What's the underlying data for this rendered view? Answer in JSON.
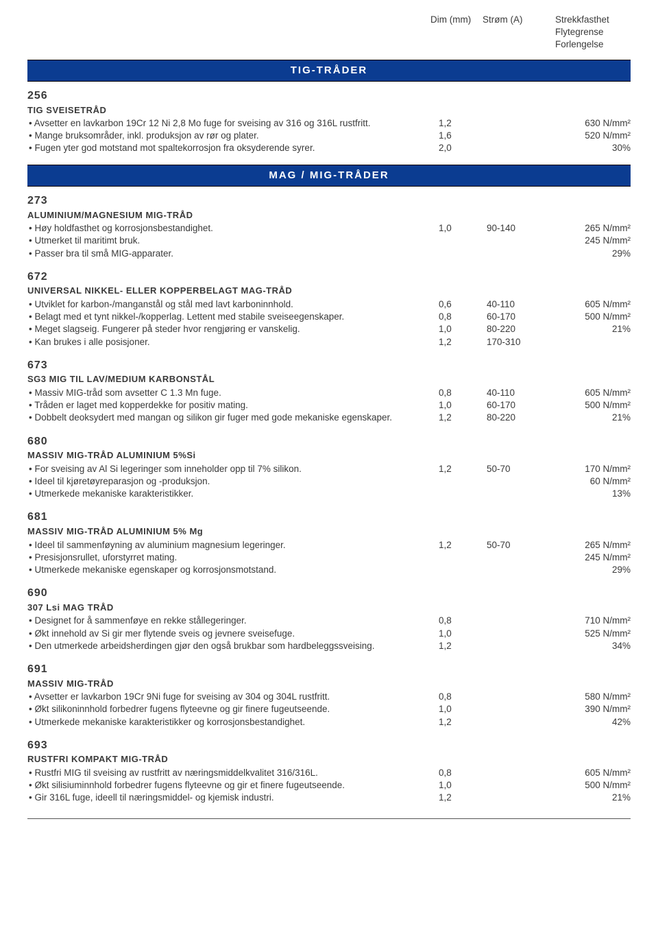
{
  "header": {
    "col1": "Dim (mm)",
    "col2": "Strøm (A)",
    "col3_l1": "Strekkfasthet",
    "col3_l2": "Flytegrense",
    "col3_l3": "Forlengelse"
  },
  "sections": {
    "tig": "TIG-TRÅDER",
    "mag": "MAG / MIG-TRÅDER"
  },
  "products": [
    {
      "num": "256",
      "sub": "TIG SVEISETRÅD",
      "bullets": [
        "Avsetter en lavkarbon 19Cr 12 Ni 2,8 Mo fuge for sveising av 316 og 316L rustfritt.",
        "Mange bruksområder, inkl. produksjon av rør og plater.",
        "Fugen yter god motstand mot spaltekorrosjon fra oksyderende syrer."
      ],
      "dims": [
        "1,2",
        "1,6",
        "2,0"
      ],
      "cur": [
        "",
        "",
        ""
      ],
      "str": [
        "630 N/mm²",
        "520 N/mm²",
        "30%"
      ]
    },
    {
      "num": "273",
      "sub": "ALUMINIUM/MAGNESIUM MIG-TRÅD",
      "bullets": [
        "Høy holdfasthet og korrosjonsbestandighet.",
        "Utmerket til maritimt bruk.",
        "Passer bra til små MIG-apparater."
      ],
      "dims": [
        "1,0",
        "",
        ""
      ],
      "cur": [
        "90-140",
        "",
        ""
      ],
      "str": [
        "265 N/mm²",
        "245 N/mm²",
        "29%"
      ]
    },
    {
      "num": "672",
      "sub": "UNIVERSAL NIKKEL- ELLER KOPPERBELAGT MAG-TRÅD",
      "bullets": [
        "Utviklet for karbon-/manganstål og stål med lavt karboninnhold.",
        "Belagt med et tynt nikkel-/kopperlag. Lettent med stabile sveiseegenskaper.",
        "Meget slagseig. Fungerer på steder hvor rengjøring er vanskelig.",
        "Kan brukes i alle posisjoner."
      ],
      "dims": [
        "0,6",
        "0,8",
        "1,0",
        "1,2"
      ],
      "cur": [
        "40-110",
        "60-170",
        "80-220",
        "170-310"
      ],
      "str": [
        "605 N/mm²",
        "500 N/mm²",
        "21%",
        ""
      ]
    },
    {
      "num": "673",
      "sub": "SG3 MIG TIL LAV/MEDIUM KARBONSTÅL",
      "bullets": [
        "Massiv MIG-tråd som avsetter C 1.3 Mn fuge.",
        "Tråden er laget med kopperdekke for positiv mating.",
        "Dobbelt deoksydert med mangan og silikon gir fuger med gode mekaniske egenskaper."
      ],
      "dims": [
        "0,8",
        "1,0",
        "1,2"
      ],
      "cur": [
        "40-110",
        "60-170",
        "80-220"
      ],
      "str": [
        "605 N/mm²",
        "500 N/mm²",
        "21%"
      ]
    },
    {
      "num": "680",
      "sub": "MASSIV MIG-TRÅD ALUMINIUM 5%Si",
      "bullets": [
        "For sveising av Al Si legeringer som inneholder opp til 7% silikon.",
        "Ideel til kjøretøyreparasjon og -produksjon.",
        "Utmerkede mekaniske karakteristikker."
      ],
      "dims": [
        "1,2",
        "",
        ""
      ],
      "cur": [
        "50-70",
        "",
        ""
      ],
      "str": [
        "170 N/mm²",
        "60 N/mm²",
        "13%"
      ]
    },
    {
      "num": "681",
      "sub": "MASSIV MIG-TRÅD ALUMINIUM 5% Mg",
      "bullets": [
        "Ideel til sammenføyning av aluminium magnesium legeringer.",
        "Presisjonsrullet, uforstyrret mating.",
        "Utmerkede mekaniske egenskaper og korrosjonsmotstand."
      ],
      "dims": [
        "1,2",
        "",
        ""
      ],
      "cur": [
        "50-70",
        "",
        ""
      ],
      "str": [
        "265 N/mm²",
        "245 N/mm²",
        "29%"
      ]
    },
    {
      "num": "690",
      "sub": "307 Lsi MAG TRÅD",
      "bullets": [
        "Designet for å sammenføye en rekke stållegeringer.",
        "Økt innehold av Si gir mer flytende sveis og jevnere sveisefuge.",
        "Den utmerkede arbeidsherdingen gjør den også brukbar som hardbeleggssveising."
      ],
      "dims": [
        "0,8",
        "1,0",
        "1,2"
      ],
      "cur": [
        "",
        "",
        ""
      ],
      "str": [
        "710 N/mm²",
        "525 N/mm²",
        "34%"
      ]
    },
    {
      "num": "691",
      "sub": "MASSIV MIG-TRÅD",
      "bullets": [
        "Avsetter er lavkarbon 19Cr 9Ni fuge for sveising av 304 og 304L rustfritt.",
        "Økt silikoninnhold forbedrer fugens flyteevne og gir finere fugeutseende.",
        "Utmerkede mekaniske karakteristikker og korrosjonsbestandighet."
      ],
      "dims": [
        "0,8",
        "1,0",
        "1,2"
      ],
      "cur": [
        "",
        "",
        ""
      ],
      "str": [
        "580 N/mm²",
        "390 N/mm²",
        "42%"
      ]
    },
    {
      "num": "693",
      "sub": "RUSTFRI KOMPAKT MIG-TRÅD",
      "bullets": [
        "Rustfri MIG til sveising av rustfritt av næringsmiddelkvalitet 316/316L.",
        "Økt silisiuminnhold forbedrer fugens flyteevne og gir et finere fugeutseende.",
        "Gir 316L fuge, ideell til næringsmiddel- og kjemisk industri."
      ],
      "dims": [
        "0,8",
        "1,0",
        "1,2"
      ],
      "cur": [
        "",
        "",
        ""
      ],
      "str": [
        "605 N/mm²",
        "500 N/mm²",
        "21%"
      ]
    }
  ]
}
